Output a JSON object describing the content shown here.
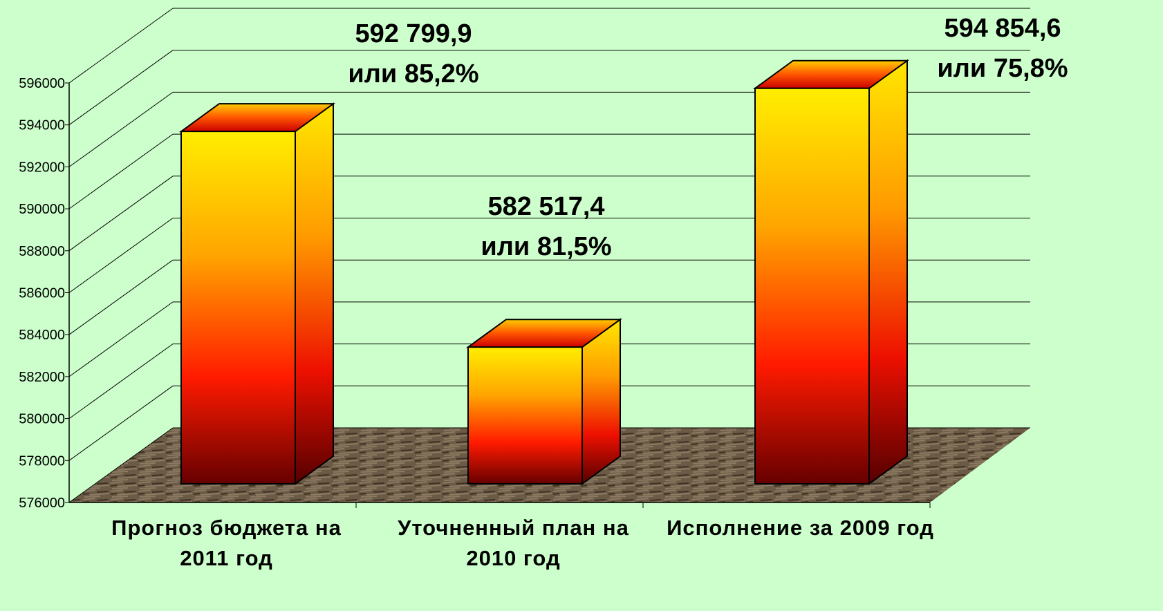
{
  "chart_data": {
    "type": "bar3d",
    "categories": [
      "Прогноз бюджета на 2011 год",
      "Уточненный план на 2010 год",
      "Исполнение за 2009 год"
    ],
    "values": [
      592799.9,
      582517.4,
      594854.6
    ],
    "value_labels": [
      "592 799,9",
      "582 517,4",
      "594 854,6"
    ],
    "annotations": [
      "или 85,2%",
      "или 81,5%",
      "или 75,8%"
    ],
    "ylim": [
      576000,
      596000
    ],
    "yticks": [
      576000,
      578000,
      580000,
      582000,
      584000,
      586000,
      588000,
      590000,
      592000,
      594000,
      596000
    ],
    "grid": true
  }
}
